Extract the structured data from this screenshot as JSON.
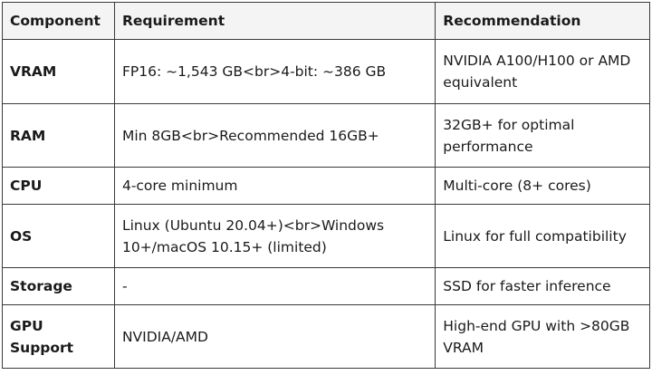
{
  "table": {
    "headers": [
      "Component",
      "Requirement",
      "Recommendation"
    ],
    "rows": [
      [
        "VRAM",
        "FP16: ~1,543 GB<br>4-bit: ~386 GB",
        "NVIDIA A100/H100 or AMD equivalent"
      ],
      [
        "RAM",
        "Min 8GB<br>Recommended 16GB+",
        "32GB+ for optimal performance"
      ],
      [
        "CPU",
        "4-core minimum",
        "Multi-core (8+ cores)"
      ],
      [
        "OS",
        "Linux (Ubuntu 20.04+)<br>Windows 10+/macOS 10.15+ (limited)",
        "Linux for full compatibility"
      ],
      [
        "Storage",
        "-",
        "SSD for faster inference"
      ],
      [
        "GPU Support",
        "NVIDIA/AMD",
        "High-end GPU with >80GB VRAM"
      ]
    ]
  }
}
